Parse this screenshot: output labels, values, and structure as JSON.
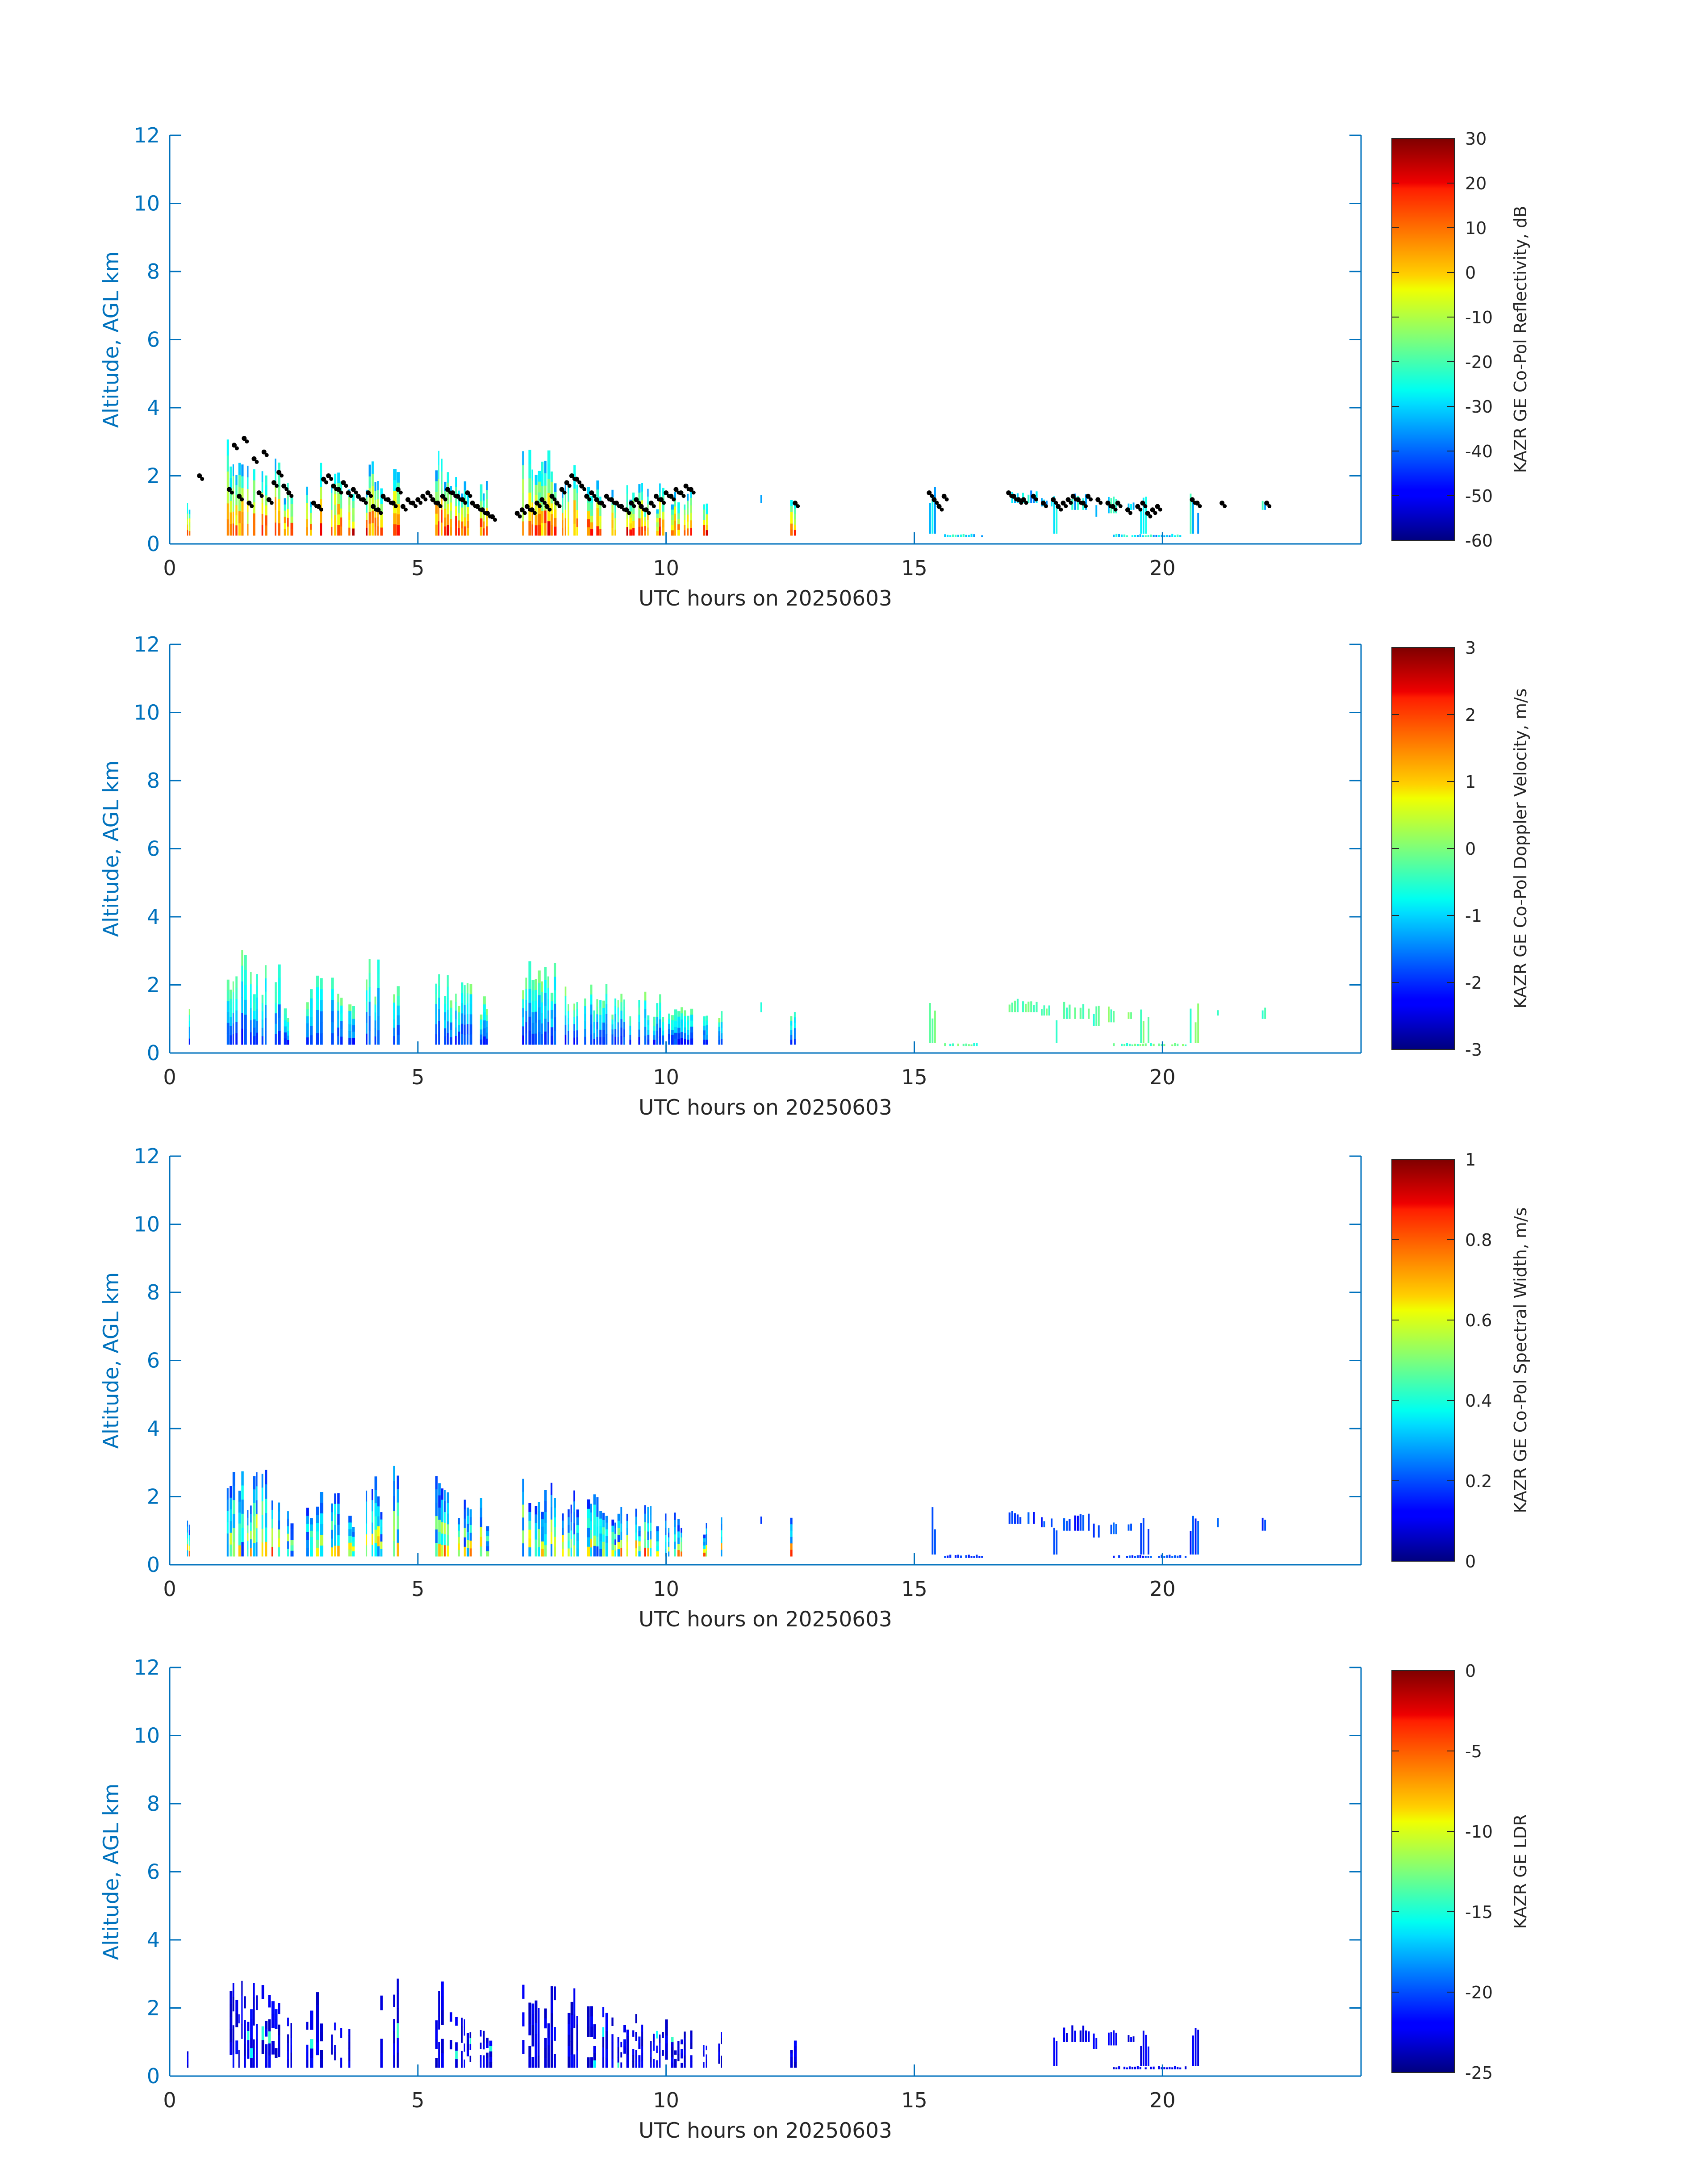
{
  "figure": {
    "axis_color": "#0072BD",
    "text_color": "#262626",
    "marker_color": "#000000"
  },
  "chart_data": [
    {
      "type": "heatmap",
      "title": "",
      "xlabel": "UTC hours on 20250603",
      "ylabel": "Altitude, AGL km",
      "xlim": [
        0,
        24
      ],
      "ylim": [
        0,
        12
      ],
      "xticks": [
        0,
        5,
        10,
        15,
        20
      ],
      "yticks": [
        0,
        2,
        4,
        6,
        8,
        10,
        12
      ],
      "colorbar": {
        "label": "KAZR GE Co-Pol Reflectivity, dB",
        "range": [
          -60,
          30
        ],
        "ticks": [
          30,
          20,
          10,
          0,
          -10,
          -20,
          -30,
          -40,
          -50,
          -60
        ],
        "colormap": "jet"
      },
      "has_markers": true,
      "markers_hours": [
        0.6,
        1.2,
        1.3,
        1.4,
        1.5,
        1.6,
        1.7,
        1.8,
        1.9,
        2.0,
        2.1,
        2.2,
        2.3,
        2.4,
        2.9,
        3.0,
        3.1,
        3.2,
        3.3,
        3.4,
        3.5,
        3.6,
        3.7,
        3.8,
        3.9,
        4.0,
        4.1,
        4.2,
        4.3,
        4.4,
        4.5,
        4.6,
        4.7,
        4.8,
        4.9,
        5.0,
        5.1,
        5.2,
        5.3,
        5.4,
        5.5,
        5.6,
        5.7,
        5.8,
        5.9,
        6.0,
        6.1,
        6.2,
        6.3,
        6.4,
        6.5,
        7.0,
        7.1,
        7.2,
        7.3,
        7.4,
        7.5,
        7.6,
        7.7,
        7.8,
        7.9,
        8.0,
        8.1,
        8.2,
        8.3,
        8.4,
        8.5,
        8.6,
        8.7,
        8.8,
        8.9,
        9.0,
        9.1,
        9.2,
        9.3,
        9.4,
        9.5,
        9.6,
        9.7,
        9.8,
        9.9,
        10.0,
        10.1,
        10.2,
        10.3,
        10.4,
        10.5,
        12.6,
        15.3,
        15.4,
        15.5,
        15.6,
        16.9,
        17.0,
        17.1,
        17.2,
        17.4,
        17.6,
        17.8,
        17.9,
        18.0,
        18.1,
        18.2,
        18.3,
        18.4,
        18.5,
        18.7,
        18.9,
        19.0,
        19.1,
        19.3,
        19.5,
        19.6,
        19.7,
        19.8,
        19.9,
        20.6,
        20.7,
        21.2,
        22.1
      ],
      "markers_km": [
        2.0,
        1.6,
        2.9,
        1.4,
        3.1,
        1.2,
        2.5,
        1.5,
        2.7,
        1.3,
        1.8,
        2.1,
        1.7,
        1.5,
        1.2,
        1.1,
        1.9,
        2.0,
        1.7,
        1.6,
        1.8,
        1.5,
        1.6,
        1.4,
        1.3,
        1.5,
        1.1,
        1.0,
        1.4,
        1.3,
        1.2,
        1.6,
        1.1,
        1.3,
        1.2,
        1.3,
        1.4,
        1.5,
        1.3,
        1.2,
        1.4,
        1.6,
        1.5,
        1.4,
        1.3,
        1.5,
        1.2,
        1.1,
        1.0,
        0.9,
        0.8,
        0.9,
        1.0,
        1.1,
        1.0,
        1.2,
        1.3,
        1.1,
        1.4,
        1.2,
        1.6,
        1.8,
        2.0,
        1.9,
        1.7,
        1.4,
        1.5,
        1.3,
        1.2,
        1.4,
        1.3,
        1.2,
        1.1,
        1.0,
        1.2,
        1.3,
        1.1,
        1.0,
        1.2,
        1.4,
        1.3,
        1.5,
        1.4,
        1.6,
        1.5,
        1.7,
        1.6,
        1.2,
        1.5,
        1.3,
        1.1,
        1.4,
        1.5,
        1.4,
        1.3,
        1.3,
        1.4,
        1.2,
        1.3,
        1.1,
        1.2,
        1.3,
        1.4,
        1.3,
        1.2,
        1.4,
        1.3,
        1.2,
        1.1,
        1.2,
        1.0,
        1.1,
        1.2,
        0.9,
        1.0,
        1.1,
        1.3,
        1.2,
        1.2,
        1.2
      ]
    },
    {
      "type": "heatmap",
      "title": "",
      "xlabel": "UTC hours on 20250603",
      "ylabel": "Altitude, AGL km",
      "xlim": [
        0,
        24
      ],
      "ylim": [
        0,
        12
      ],
      "xticks": [
        0,
        5,
        10,
        15,
        20
      ],
      "yticks": [
        0,
        2,
        4,
        6,
        8,
        10,
        12
      ],
      "colorbar": {
        "label": "KAZR GE Co-Pol Doppler Velocity, m/s",
        "range": [
          -3,
          3
        ],
        "ticks": [
          3,
          2,
          1,
          0,
          -1,
          -2,
          -3
        ],
        "colormap": "jet"
      },
      "has_markers": false
    },
    {
      "type": "heatmap",
      "title": "",
      "xlabel": "UTC hours on 20250603",
      "ylabel": "Altitude, AGL km",
      "xlim": [
        0,
        24
      ],
      "ylim": [
        0,
        12
      ],
      "xticks": [
        0,
        5,
        10,
        15,
        20
      ],
      "yticks": [
        0,
        2,
        4,
        6,
        8,
        10,
        12
      ],
      "colorbar": {
        "label": "KAZR GE Co-Pol Spectral Width, m/s",
        "range": [
          0,
          1
        ],
        "ticks": [
          1,
          0.8,
          0.6,
          0.4,
          0.2,
          0
        ],
        "colormap": "jet"
      },
      "has_markers": false
    },
    {
      "type": "heatmap",
      "title": "",
      "xlabel": "UTC hours on 20250603",
      "ylabel": "Altitude, AGL km",
      "xlim": [
        0,
        24
      ],
      "ylim": [
        0,
        12
      ],
      "xticks": [
        0,
        5,
        10,
        15,
        20
      ],
      "yticks": [
        0,
        2,
        4,
        6,
        8,
        10,
        12
      ],
      "colorbar": {
        "label": "KAZR GE LDR",
        "range": [
          -25,
          0
        ],
        "ticks": [
          0,
          -5,
          -10,
          -15,
          -20,
          -25
        ],
        "colormap": "jet"
      },
      "has_markers": false
    }
  ],
  "echo_columns": [
    {
      "start": 0.35,
      "end": 0.42,
      "top_km": 1.3
    },
    {
      "start": 1.15,
      "end": 1.5,
      "top_km": 3.2
    },
    {
      "start": 1.5,
      "end": 1.8,
      "top_km": 2.9
    },
    {
      "start": 1.85,
      "end": 2.25,
      "top_km": 2.8
    },
    {
      "start": 2.3,
      "end": 2.5,
      "top_km": 1.8
    },
    {
      "start": 2.75,
      "end": 2.9,
      "top_km": 2.0
    },
    {
      "start": 2.95,
      "end": 3.1,
      "top_km": 2.9
    },
    {
      "start": 3.25,
      "end": 3.5,
      "top_km": 2.3
    },
    {
      "start": 3.6,
      "end": 3.75,
      "top_km": 1.9
    },
    {
      "start": 3.95,
      "end": 4.3,
      "top_km": 2.8
    },
    {
      "start": 4.5,
      "end": 4.65,
      "top_km": 3.0
    },
    {
      "start": 5.35,
      "end": 5.7,
      "top_km": 2.8
    },
    {
      "start": 5.75,
      "end": 6.1,
      "top_km": 2.1
    },
    {
      "start": 6.25,
      "end": 6.5,
      "top_km": 2.0
    },
    {
      "start": 7.1,
      "end": 7.8,
      "top_km": 2.8
    },
    {
      "start": 7.9,
      "end": 8.25,
      "top_km": 2.6
    },
    {
      "start": 8.35,
      "end": 8.9,
      "top_km": 2.1
    },
    {
      "start": 8.9,
      "end": 9.5,
      "top_km": 1.9
    },
    {
      "start": 9.5,
      "end": 10.1,
      "top_km": 1.8
    },
    {
      "start": 10.1,
      "end": 10.55,
      "top_km": 1.8
    },
    {
      "start": 10.75,
      "end": 10.85,
      "top_km": 1.3
    },
    {
      "start": 11.05,
      "end": 11.15,
      "top_km": 1.5
    },
    {
      "start": 12.5,
      "end": 12.65,
      "top_km": 1.4
    }
  ],
  "light_echoes": [
    {
      "start": 11.9,
      "end": 11.95,
      "low_km": 1.2,
      "high_km": 1.5
    },
    {
      "start": 15.3,
      "end": 15.45,
      "low_km": 0.3,
      "high_km": 1.7
    },
    {
      "start": 16.9,
      "end": 17.5,
      "low_km": 1.2,
      "high_km": 1.6
    },
    {
      "start": 17.55,
      "end": 17.8,
      "low_km": 1.1,
      "high_km": 1.4
    },
    {
      "start": 17.8,
      "end": 17.9,
      "low_km": 0.3,
      "high_km": 1.4
    },
    {
      "start": 18.0,
      "end": 18.55,
      "low_km": 1.0,
      "high_km": 1.5
    },
    {
      "start": 18.6,
      "end": 18.75,
      "low_km": 0.8,
      "high_km": 1.4
    },
    {
      "start": 18.9,
      "end": 19.1,
      "low_km": 0.9,
      "high_km": 1.4
    },
    {
      "start": 19.3,
      "end": 19.45,
      "low_km": 1.0,
      "high_km": 1.3
    },
    {
      "start": 19.55,
      "end": 19.75,
      "low_km": 0.3,
      "high_km": 1.4
    },
    {
      "start": 20.55,
      "end": 20.75,
      "low_km": 0.3,
      "high_km": 1.5
    },
    {
      "start": 21.1,
      "end": 21.15,
      "low_km": 1.1,
      "high_km": 1.4
    },
    {
      "start": 22.0,
      "end": 22.1,
      "low_km": 1.0,
      "high_km": 1.4
    },
    {
      "start": 15.6,
      "end": 16.4,
      "low_km": 0.2,
      "high_km": 0.3
    },
    {
      "start": 19.0,
      "end": 20.5,
      "low_km": 0.2,
      "high_km": 0.3
    }
  ]
}
